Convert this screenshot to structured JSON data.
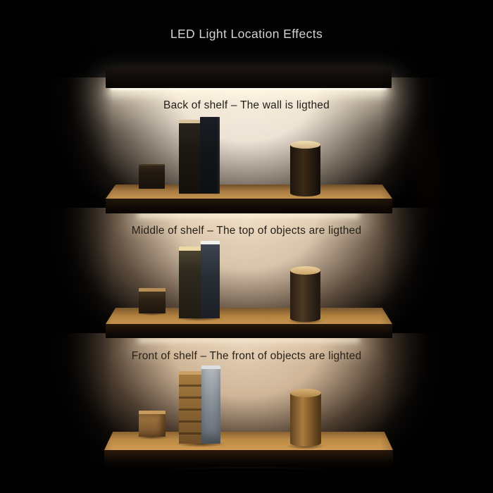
{
  "title": "LED Light Location Effects",
  "scenes": [
    {
      "name": "back-of-shelf",
      "caption": "Back of shelf – The wall is ligthed"
    },
    {
      "name": "middle-of-shelf",
      "caption": "Middle of shelf – The top of objects are ligthed"
    },
    {
      "name": "front-of-shelf",
      "caption": "Front of shelf – The front of objects are lighted"
    }
  ],
  "colors": {
    "background": "#000000",
    "title_text": "#d5d3d1",
    "caption_text": "#211d17",
    "led_glow": "#fdf6e4",
    "wall_back_lit": "#f0e8dc",
    "wall_warm": "#d8c3aa",
    "shelf_wood": "#b8864a",
    "shelf_front_dark": "#120c07",
    "book_gold_spine": "#9a7340",
    "book_silver_spine": "#9aa1a8",
    "cylinder_lit": "#a87c44"
  }
}
